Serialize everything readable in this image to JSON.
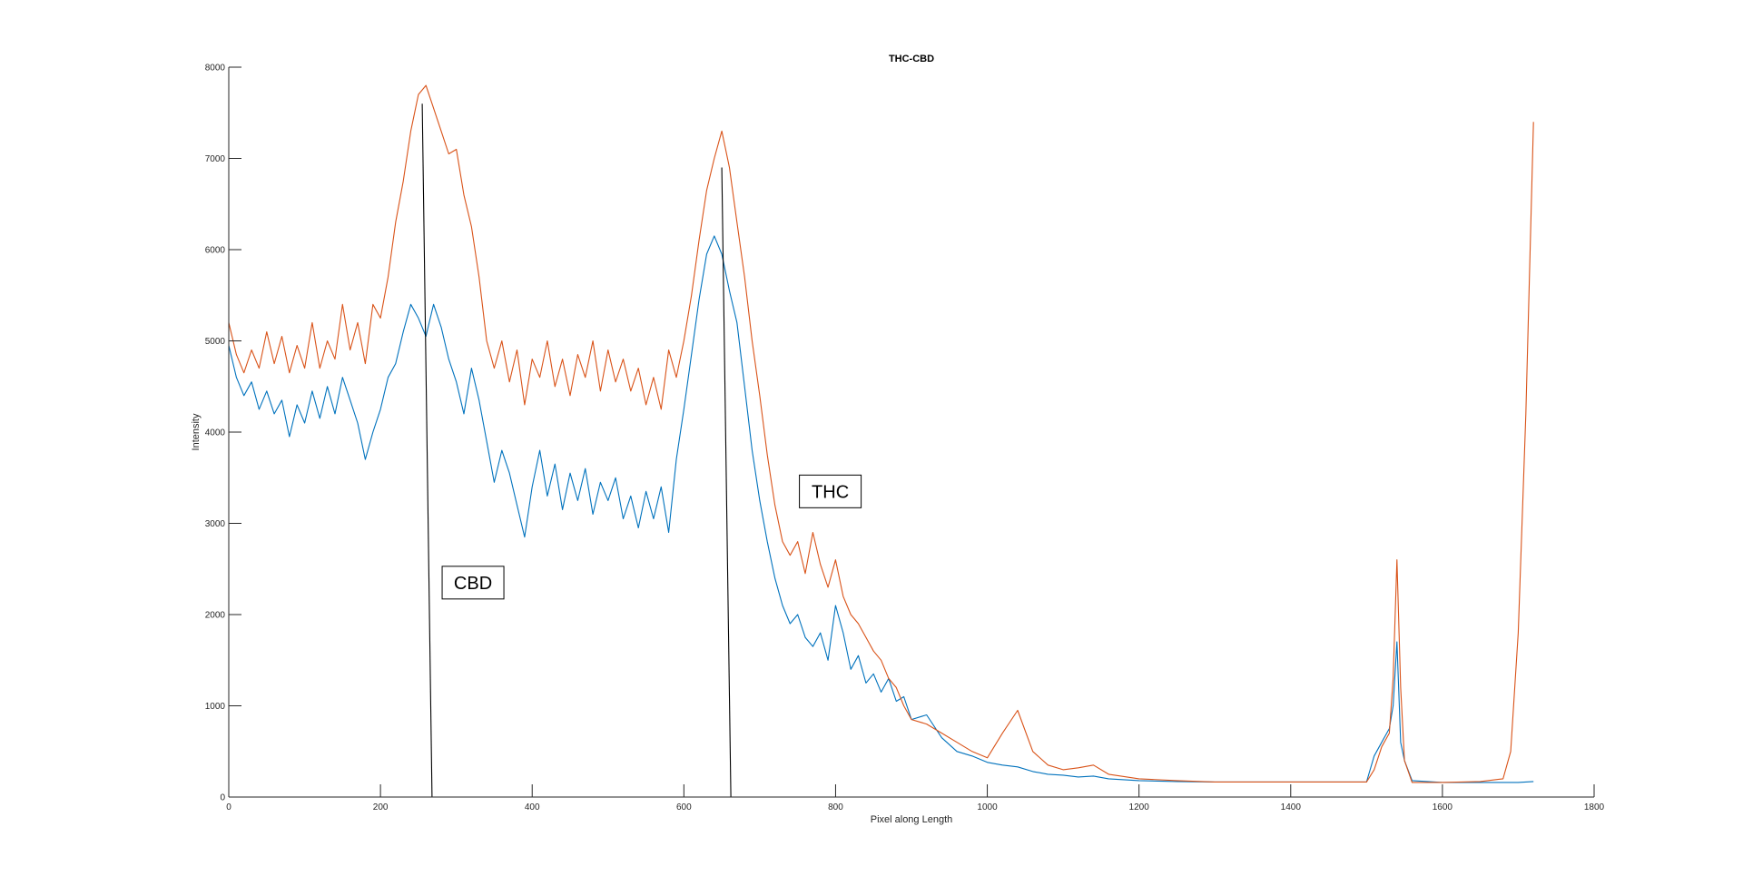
{
  "chart_data": {
    "type": "line",
    "title": "THC-CBD",
    "xlabel": "Pixel along Length",
    "ylabel": "Intensity",
    "xlim": [
      0,
      1800
    ],
    "ylim": [
      0,
      8000
    ],
    "xticks": [
      0,
      200,
      400,
      600,
      800,
      1000,
      1200,
      1400,
      1600,
      1800
    ],
    "yticks": [
      0,
      1000,
      2000,
      3000,
      4000,
      5000,
      6000,
      7000,
      8000
    ],
    "grid": false,
    "colors": {
      "series1": "#0072BD",
      "series2": "#D95319",
      "marker": "#000000",
      "axes": "#262626"
    },
    "series": [
      {
        "color": "#0072BD",
        "points": [
          [
            0,
            4950
          ],
          [
            10,
            4600
          ],
          [
            20,
            4400
          ],
          [
            30,
            4550
          ],
          [
            40,
            4250
          ],
          [
            50,
            4450
          ],
          [
            60,
            4200
          ],
          [
            70,
            4350
          ],
          [
            80,
            3950
          ],
          [
            90,
            4300
          ],
          [
            100,
            4100
          ],
          [
            110,
            4450
          ],
          [
            120,
            4150
          ],
          [
            130,
            4500
          ],
          [
            140,
            4200
          ],
          [
            150,
            4600
          ],
          [
            160,
            4350
          ],
          [
            170,
            4100
          ],
          [
            180,
            3700
          ],
          [
            190,
            4000
          ],
          [
            200,
            4250
          ],
          [
            210,
            4600
          ],
          [
            220,
            4750
          ],
          [
            230,
            5100
          ],
          [
            240,
            5400
          ],
          [
            250,
            5250
          ],
          [
            260,
            5050
          ],
          [
            270,
            5400
          ],
          [
            280,
            5150
          ],
          [
            290,
            4800
          ],
          [
            300,
            4550
          ],
          [
            310,
            4200
          ],
          [
            320,
            4700
          ],
          [
            330,
            4350
          ],
          [
            340,
            3900
          ],
          [
            350,
            3450
          ],
          [
            360,
            3800
          ],
          [
            370,
            3550
          ],
          [
            380,
            3200
          ],
          [
            390,
            2850
          ],
          [
            400,
            3400
          ],
          [
            410,
            3800
          ],
          [
            420,
            3300
          ],
          [
            430,
            3650
          ],
          [
            440,
            3150
          ],
          [
            450,
            3550
          ],
          [
            460,
            3250
          ],
          [
            470,
            3600
          ],
          [
            480,
            3100
          ],
          [
            490,
            3450
          ],
          [
            500,
            3250
          ],
          [
            510,
            3500
          ],
          [
            520,
            3050
          ],
          [
            530,
            3300
          ],
          [
            540,
            2950
          ],
          [
            550,
            3350
          ],
          [
            560,
            3050
          ],
          [
            570,
            3400
          ],
          [
            580,
            2900
          ],
          [
            590,
            3700
          ],
          [
            600,
            4250
          ],
          [
            610,
            4850
          ],
          [
            620,
            5450
          ],
          [
            630,
            5950
          ],
          [
            640,
            6150
          ],
          [
            650,
            5950
          ],
          [
            660,
            5550
          ],
          [
            670,
            5200
          ],
          [
            680,
            4500
          ],
          [
            690,
            3800
          ],
          [
            700,
            3250
          ],
          [
            710,
            2800
          ],
          [
            720,
            2400
          ],
          [
            730,
            2100
          ],
          [
            740,
            1900
          ],
          [
            750,
            2000
          ],
          [
            760,
            1750
          ],
          [
            770,
            1650
          ],
          [
            780,
            1800
          ],
          [
            790,
            1500
          ],
          [
            800,
            2100
          ],
          [
            810,
            1800
          ],
          [
            820,
            1400
          ],
          [
            830,
            1550
          ],
          [
            840,
            1250
          ],
          [
            850,
            1350
          ],
          [
            860,
            1150
          ],
          [
            870,
            1300
          ],
          [
            880,
            1050
          ],
          [
            890,
            1100
          ],
          [
            900,
            850
          ],
          [
            920,
            900
          ],
          [
            940,
            650
          ],
          [
            960,
            500
          ],
          [
            980,
            450
          ],
          [
            1000,
            380
          ],
          [
            1020,
            350
          ],
          [
            1040,
            330
          ],
          [
            1060,
            280
          ],
          [
            1080,
            250
          ],
          [
            1100,
            240
          ],
          [
            1120,
            220
          ],
          [
            1140,
            230
          ],
          [
            1160,
            200
          ],
          [
            1200,
            180
          ],
          [
            1250,
            170
          ],
          [
            1300,
            165
          ],
          [
            1400,
            165
          ],
          [
            1500,
            165
          ],
          [
            1510,
            450
          ],
          [
            1520,
            600
          ],
          [
            1530,
            750
          ],
          [
            1535,
            1000
          ],
          [
            1540,
            1700
          ],
          [
            1545,
            600
          ],
          [
            1550,
            400
          ],
          [
            1560,
            180
          ],
          [
            1600,
            160
          ],
          [
            1650,
            160
          ],
          [
            1700,
            160
          ],
          [
            1720,
            170
          ]
        ]
      },
      {
        "color": "#D95319",
        "points": [
          [
            0,
            5200
          ],
          [
            10,
            4850
          ],
          [
            20,
            4650
          ],
          [
            30,
            4900
          ],
          [
            40,
            4700
          ],
          [
            50,
            5100
          ],
          [
            60,
            4750
          ],
          [
            70,
            5050
          ],
          [
            80,
            4650
          ],
          [
            90,
            4950
          ],
          [
            100,
            4700
          ],
          [
            110,
            5200
          ],
          [
            120,
            4700
          ],
          [
            130,
            5000
          ],
          [
            140,
            4800
          ],
          [
            150,
            5400
          ],
          [
            160,
            4900
          ],
          [
            170,
            5200
          ],
          [
            180,
            4750
          ],
          [
            190,
            5400
          ],
          [
            200,
            5250
          ],
          [
            210,
            5700
          ],
          [
            220,
            6300
          ],
          [
            230,
            6750
          ],
          [
            240,
            7300
          ],
          [
            250,
            7700
          ],
          [
            260,
            7800
          ],
          [
            270,
            7550
          ],
          [
            280,
            7300
          ],
          [
            290,
            7050
          ],
          [
            300,
            7100
          ],
          [
            310,
            6600
          ],
          [
            320,
            6250
          ],
          [
            330,
            5700
          ],
          [
            340,
            5000
          ],
          [
            350,
            4700
          ],
          [
            360,
            5000
          ],
          [
            370,
            4550
          ],
          [
            380,
            4900
          ],
          [
            390,
            4300
          ],
          [
            400,
            4800
          ],
          [
            410,
            4600
          ],
          [
            420,
            5000
          ],
          [
            430,
            4500
          ],
          [
            440,
            4800
          ],
          [
            450,
            4400
          ],
          [
            460,
            4850
          ],
          [
            470,
            4600
          ],
          [
            480,
            5000
          ],
          [
            490,
            4450
          ],
          [
            500,
            4900
          ],
          [
            510,
            4550
          ],
          [
            520,
            4800
          ],
          [
            530,
            4450
          ],
          [
            540,
            4700
          ],
          [
            550,
            4300
          ],
          [
            560,
            4600
          ],
          [
            570,
            4250
          ],
          [
            580,
            4900
          ],
          [
            590,
            4600
          ],
          [
            600,
            5000
          ],
          [
            610,
            5500
          ],
          [
            620,
            6100
          ],
          [
            630,
            6650
          ],
          [
            640,
            7000
          ],
          [
            650,
            7300
          ],
          [
            660,
            6900
          ],
          [
            670,
            6300
          ],
          [
            680,
            5700
          ],
          [
            690,
            5000
          ],
          [
            700,
            4400
          ],
          [
            710,
            3750
          ],
          [
            720,
            3200
          ],
          [
            730,
            2800
          ],
          [
            740,
            2650
          ],
          [
            750,
            2800
          ],
          [
            760,
            2450
          ],
          [
            770,
            2900
          ],
          [
            780,
            2550
          ],
          [
            790,
            2300
          ],
          [
            800,
            2600
          ],
          [
            810,
            2200
          ],
          [
            820,
            2000
          ],
          [
            830,
            1900
          ],
          [
            840,
            1750
          ],
          [
            850,
            1600
          ],
          [
            860,
            1500
          ],
          [
            870,
            1300
          ],
          [
            880,
            1200
          ],
          [
            890,
            1000
          ],
          [
            900,
            850
          ],
          [
            920,
            800
          ],
          [
            940,
            700
          ],
          [
            960,
            600
          ],
          [
            980,
            500
          ],
          [
            1000,
            430
          ],
          [
            1020,
            700
          ],
          [
            1040,
            950
          ],
          [
            1060,
            500
          ],
          [
            1080,
            350
          ],
          [
            1100,
            300
          ],
          [
            1120,
            320
          ],
          [
            1140,
            350
          ],
          [
            1160,
            250
          ],
          [
            1200,
            200
          ],
          [
            1250,
            180
          ],
          [
            1300,
            165
          ],
          [
            1400,
            165
          ],
          [
            1500,
            165
          ],
          [
            1510,
            300
          ],
          [
            1520,
            550
          ],
          [
            1530,
            700
          ],
          [
            1535,
            1300
          ],
          [
            1540,
            2600
          ],
          [
            1545,
            1200
          ],
          [
            1550,
            400
          ],
          [
            1560,
            160
          ],
          [
            1600,
            160
          ],
          [
            1650,
            170
          ],
          [
            1680,
            200
          ],
          [
            1690,
            500
          ],
          [
            1700,
            1800
          ],
          [
            1710,
            4200
          ],
          [
            1720,
            7400
          ]
        ]
      },
      {
        "color": "#000000",
        "points": [
          [
            255,
            7600
          ],
          [
            268,
            0
          ]
        ]
      },
      {
        "color": "#000000",
        "points": [
          [
            650,
            6900
          ],
          [
            662,
            0
          ]
        ]
      }
    ],
    "annotations": [
      {
        "text": "CBD",
        "x": 322,
        "y": 2350
      },
      {
        "text": "THC",
        "x": 793,
        "y": 3350
      }
    ]
  }
}
